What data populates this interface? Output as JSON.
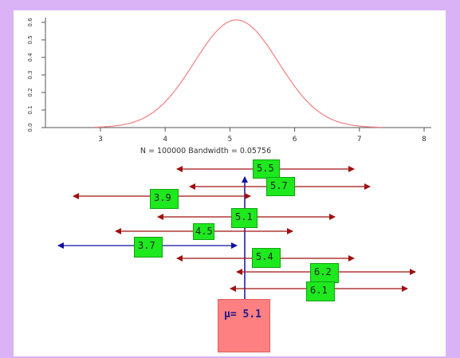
{
  "density_plot": {
    "xlabel": "N = 100000   Bandwidth = 0.05756",
    "x_ticks": [
      "3",
      "4",
      "5",
      "6",
      "7",
      "8"
    ],
    "y_ticks": [
      "0.0",
      "0.1",
      "0.2",
      "0.3",
      "0.4",
      "0.5",
      "0.6"
    ],
    "curve_color": "#f08080",
    "mean": 5.1,
    "sd": 0.65
  },
  "estimates": [
    {
      "label": "5.5"
    },
    {
      "label": "5.7"
    },
    {
      "label": "3.9"
    },
    {
      "label": "5.1"
    },
    {
      "label": "4.5"
    },
    {
      "label": "3.7"
    },
    {
      "label": "5.4"
    },
    {
      "label": "6.2"
    },
    {
      "label": "6.1"
    }
  ],
  "mu": {
    "symbol": "μ",
    "text": "= 5.1"
  },
  "colors": {
    "arrow_red": "#a01010",
    "arrow_blue": "#1010a0",
    "box_green": "#1ee81e",
    "mu_box": "#ff8080",
    "background": "#d9b3f5"
  }
}
